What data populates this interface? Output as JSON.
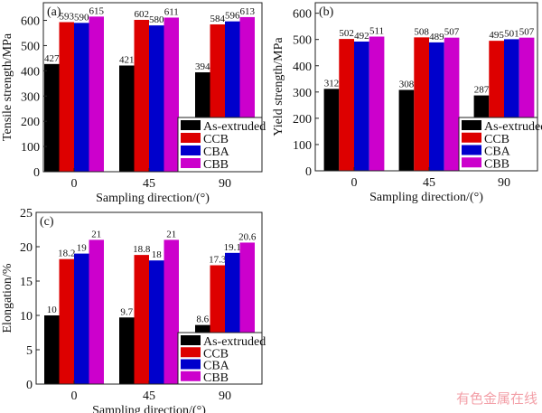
{
  "colors": {
    "As-extruded": "#000000",
    "CCB": "#dd0000",
    "CBA": "#0000cc",
    "CBB": "#cc00cc"
  },
  "watermark": "有色金属在线",
  "chart_data": [
    {
      "type": "bar",
      "panel_label": "(a)",
      "categories": [
        "0",
        "45",
        "90"
      ],
      "xlabel": "Sampling direction/(°)",
      "ylabel": "Tensile strength/MPa",
      "ylim": [
        0,
        670
      ],
      "yticks": [
        0,
        100,
        200,
        300,
        400,
        500,
        600
      ],
      "grid": false,
      "legend": "bottom-right",
      "series": [
        {
          "name": "As-extruded",
          "values": [
            427,
            421,
            394
          ]
        },
        {
          "name": "CCB",
          "values": [
            593,
            602,
            584
          ]
        },
        {
          "name": "CBA",
          "values": [
            590,
            580,
            596
          ]
        },
        {
          "name": "CBB",
          "values": [
            615,
            611,
            613
          ]
        }
      ]
    },
    {
      "type": "bar",
      "panel_label": "(b)",
      "categories": [
        "0",
        "45",
        "90"
      ],
      "xlabel": "Sampling direction/(°)",
      "ylabel": "Yield strength/MPa",
      "ylim": [
        0,
        640
      ],
      "yticks": [
        0,
        100,
        200,
        300,
        400,
        500,
        600
      ],
      "grid": false,
      "legend": "bottom-right",
      "series": [
        {
          "name": "As-extruded",
          "values": [
            312,
            308,
            287
          ]
        },
        {
          "name": "CCB",
          "values": [
            502,
            508,
            495
          ]
        },
        {
          "name": "CBA",
          "values": [
            492,
            489,
            501
          ]
        },
        {
          "name": "CBB",
          "values": [
            511,
            507,
            507
          ]
        }
      ]
    },
    {
      "type": "bar",
      "panel_label": "(c)",
      "categories": [
        "0",
        "45",
        "90"
      ],
      "xlabel": "Sampling direction/(°)",
      "ylabel": "Elongation/%",
      "ylim": [
        0,
        25
      ],
      "yticks": [
        0,
        5,
        10,
        15,
        20,
        25
      ],
      "grid": false,
      "legend": "bottom-right",
      "series": [
        {
          "name": "As-extruded",
          "values": [
            10,
            9.7,
            8.6
          ]
        },
        {
          "name": "CCB",
          "values": [
            18.2,
            18.8,
            17.3
          ]
        },
        {
          "name": "CBA",
          "values": [
            19,
            18,
            19.1
          ]
        },
        {
          "name": "CBB",
          "values": [
            21,
            21,
            20.6
          ]
        }
      ]
    }
  ]
}
